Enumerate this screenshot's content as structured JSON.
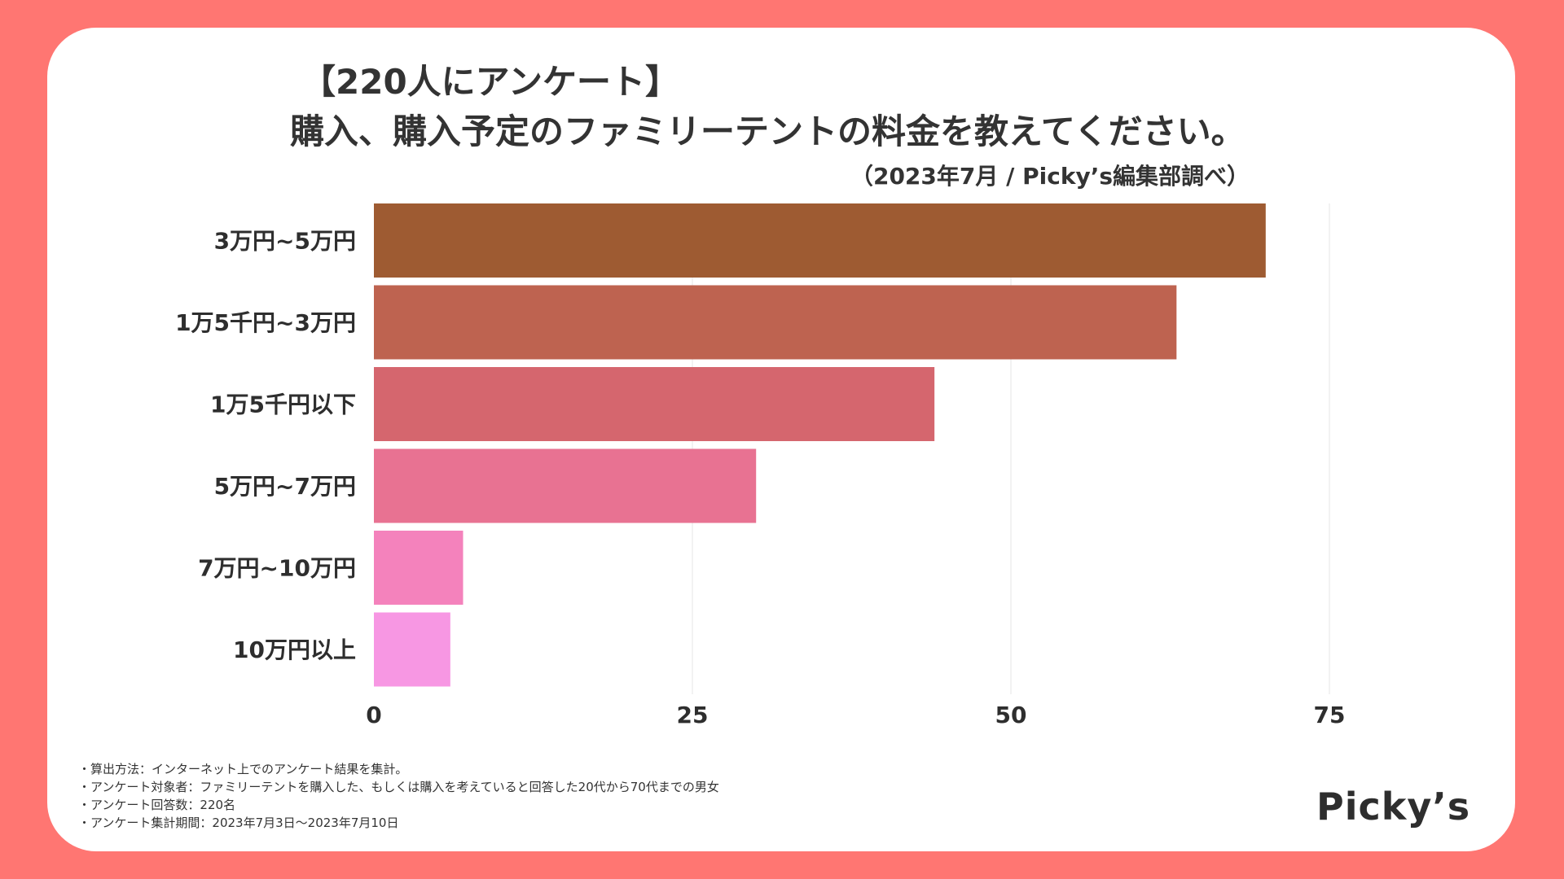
{
  "title": {
    "line1": "【220人にアンケート】",
    "line2": "購入、購入予定のファミリーテントの料金を教えてください。"
  },
  "source": "（2023年7月 / Picky’s編集部調べ）",
  "notes": [
    "・算出方法：インターネット上でのアンケート結果を集計。",
    "・アンケート対象者：ファミリーテントを購入した、もしくは購入を考えていると回答した20代から70代までの男女",
    "・アンケート回答数：220名",
    "・アンケート集計期間：2023年7月3日〜2023年7月10日"
  ],
  "logo": "Picky’s",
  "colors": {
    "background": "#ff7672",
    "card": "#ffffff",
    "gridline": "#e6e6e6"
  },
  "chart_data": {
    "type": "bar",
    "orientation": "horizontal",
    "title": "購入、購入予定のファミリーテントの料金を教えてください。",
    "xlabel": "",
    "ylabel": "",
    "categories": [
      "3万円~5万円",
      "1万5千円~3万円",
      "1万5千円以下",
      "5万円~7万円",
      "7万円~10万円",
      "10万円以上"
    ],
    "values": [
      70,
      63,
      44,
      30,
      7,
      6
    ],
    "bar_colors": [
      "#9e5b32",
      "#be6350",
      "#d5666e",
      "#e87292",
      "#f482bc",
      "#f797e3"
    ],
    "xlim": [
      0,
      75
    ],
    "xticks": [
      0,
      25,
      50,
      75
    ],
    "grid": true
  }
}
